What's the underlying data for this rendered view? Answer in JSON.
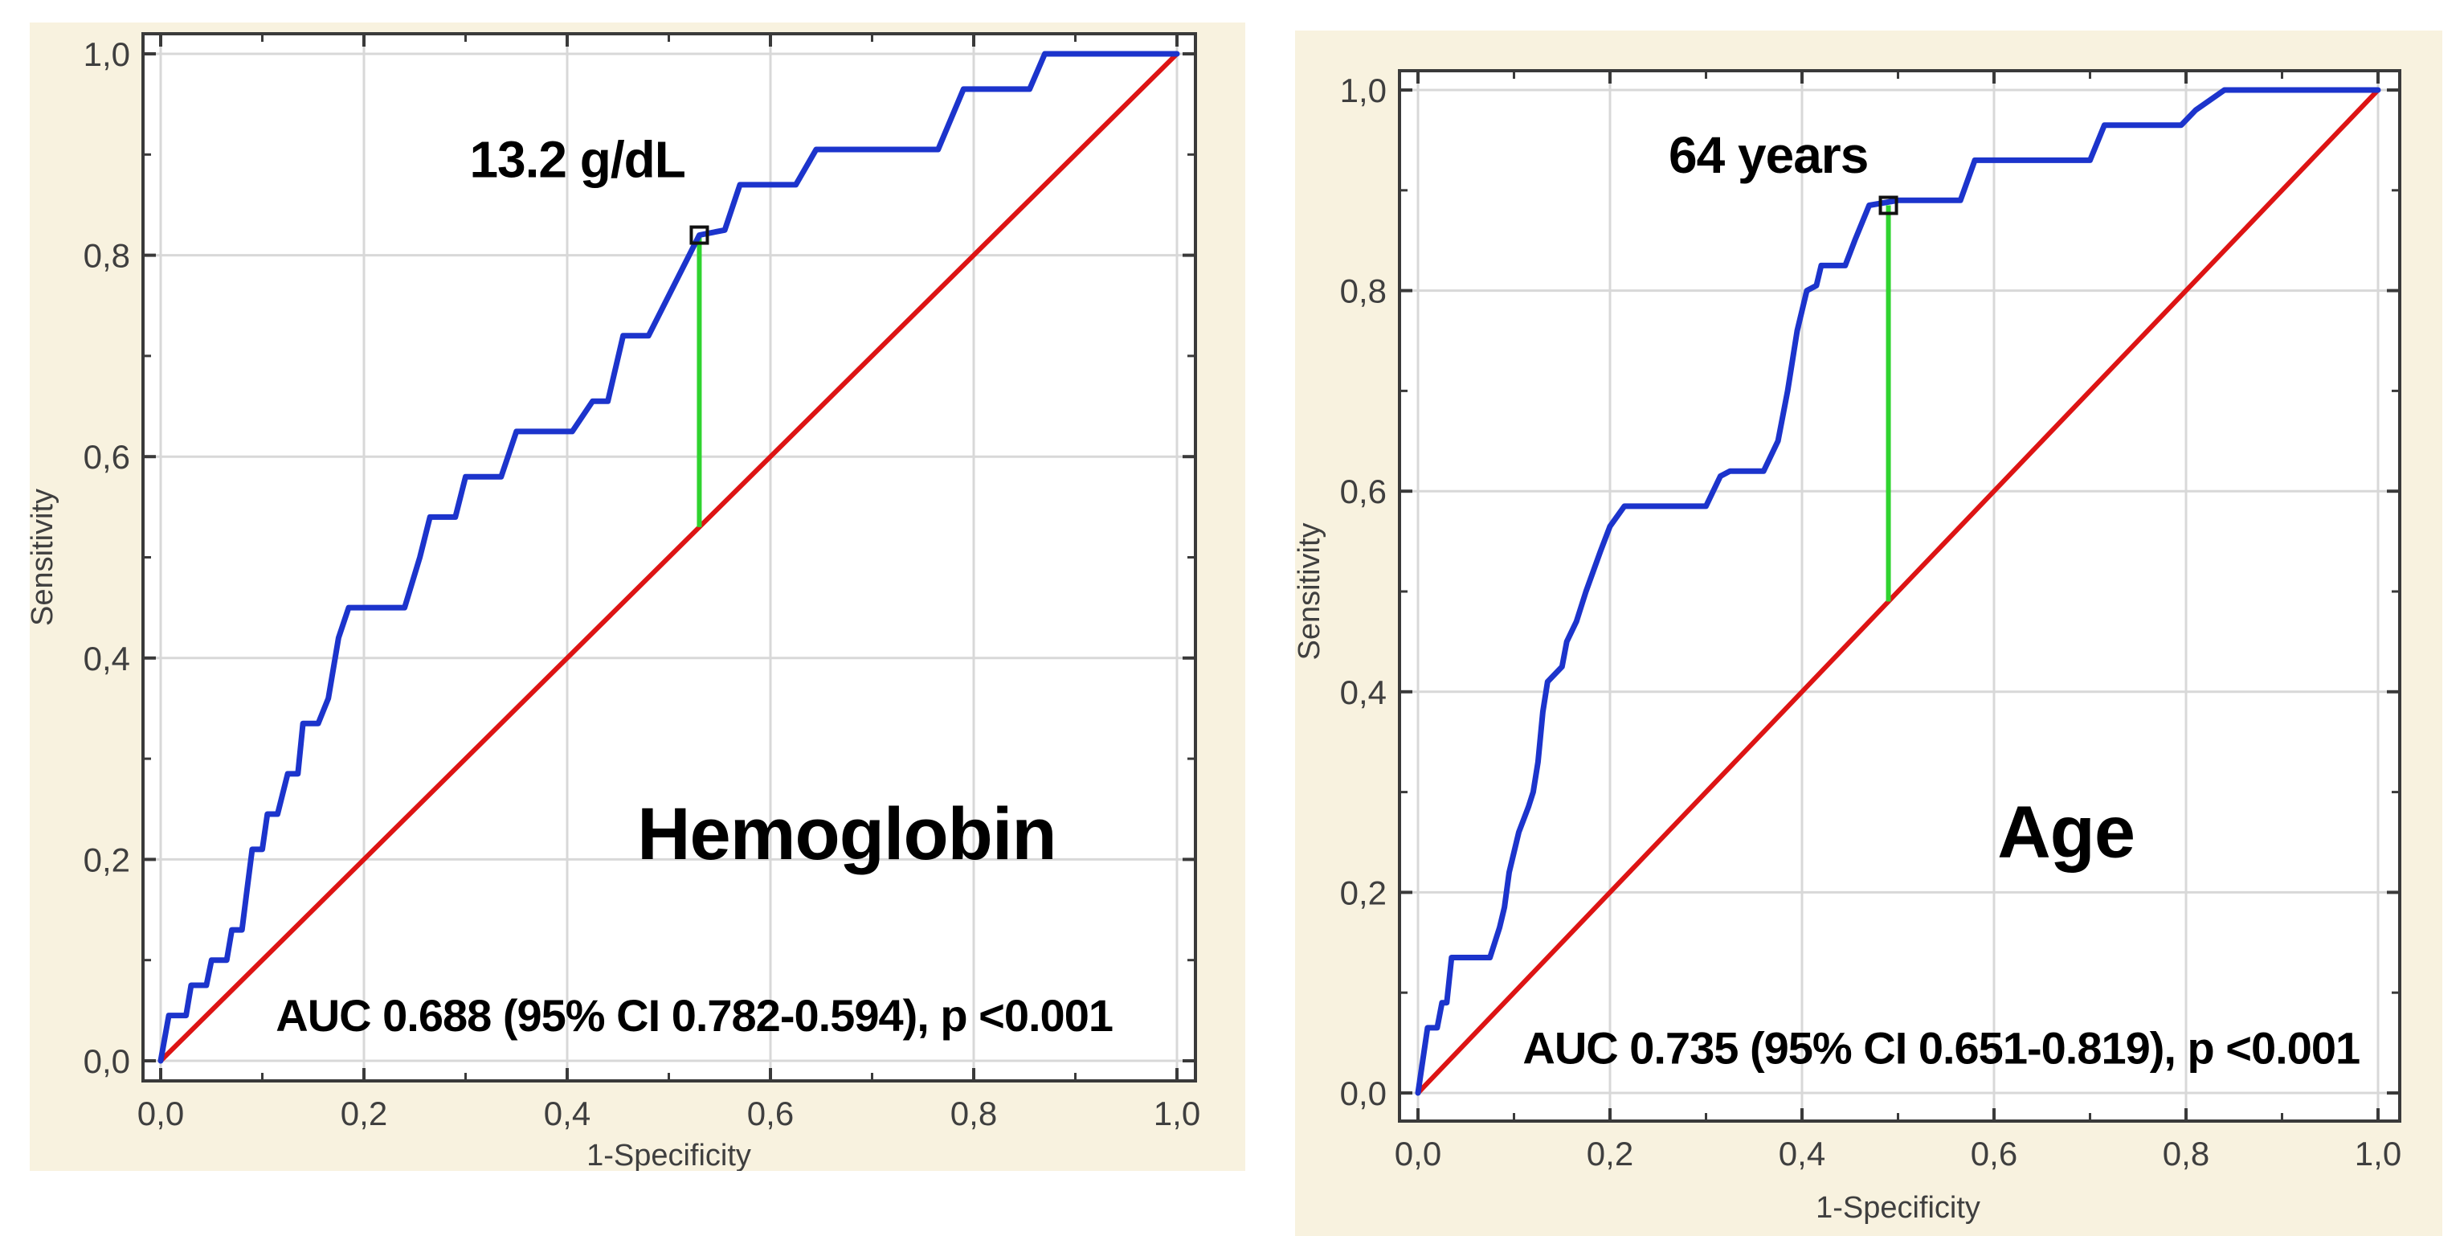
{
  "page": {
    "background": "#ffffff"
  },
  "colors": {
    "panel_bg": "#f8f2df",
    "plot_bg": "#ffffff",
    "grid": "#d8d8d8",
    "frame": "#3a3a3a",
    "tick_text": "#3f3f3f",
    "annotation_text": "#000000",
    "roc_curve": "#1c34cc",
    "chance_diagonal": "#dd1414",
    "cutoff_line": "#2fd32f",
    "cutoff_marker": "#111111"
  },
  "chart_data": [
    {
      "type": "line",
      "title": "Hemoglobin",
      "xlabel": "1-Specificity",
      "ylabel": "Sensitivity",
      "xlim": [
        0,
        1
      ],
      "ylim": [
        0,
        1
      ],
      "grid": true,
      "legend_position": "none",
      "tick_values": [
        0,
        0.2,
        0.4,
        0.6,
        0.8,
        1.0
      ],
      "tick_labels": [
        "0,0",
        "0,2",
        "0,4",
        "0,6",
        "0,8",
        "1,0"
      ],
      "minor_tick_step": 0.1,
      "series": [
        {
          "name": "ROC curve",
          "color_key": "roc_curve",
          "points": [
            [
              0,
              0
            ],
            [
              0.008,
              0.045
            ],
            [
              0.025,
              0.045
            ],
            [
              0.03,
              0.075
            ],
            [
              0.045,
              0.075
            ],
            [
              0.05,
              0.1
            ],
            [
              0.065,
              0.1
            ],
            [
              0.07,
              0.13
            ],
            [
              0.08,
              0.13
            ],
            [
              0.085,
              0.17
            ],
            [
              0.09,
              0.21
            ],
            [
              0.1,
              0.21
            ],
            [
              0.105,
              0.245
            ],
            [
              0.115,
              0.245
            ],
            [
              0.125,
              0.285
            ],
            [
              0.135,
              0.285
            ],
            [
              0.14,
              0.335
            ],
            [
              0.155,
              0.335
            ],
            [
              0.165,
              0.36
            ],
            [
              0.175,
              0.42
            ],
            [
              0.185,
              0.45
            ],
            [
              0.24,
              0.45
            ],
            [
              0.255,
              0.5
            ],
            [
              0.265,
              0.54
            ],
            [
              0.29,
              0.54
            ],
            [
              0.3,
              0.58
            ],
            [
              0.335,
              0.58
            ],
            [
              0.35,
              0.625
            ],
            [
              0.405,
              0.625
            ],
            [
              0.425,
              0.655
            ],
            [
              0.44,
              0.655
            ],
            [
              0.455,
              0.72
            ],
            [
              0.48,
              0.72
            ],
            [
              0.53,
              0.82
            ],
            [
              0.555,
              0.825
            ],
            [
              0.57,
              0.87
            ],
            [
              0.625,
              0.87
            ],
            [
              0.645,
              0.905
            ],
            [
              0.765,
              0.905
            ],
            [
              0.79,
              0.965
            ],
            [
              0.855,
              0.965
            ],
            [
              0.87,
              1.0
            ],
            [
              1.0,
              1.0
            ]
          ]
        },
        {
          "name": "Chance diagonal",
          "color_key": "chance_diagonal",
          "points": [
            [
              0,
              0
            ],
            [
              1,
              1
            ]
          ]
        }
      ],
      "cutoff": {
        "label": "13.2 g/dL",
        "x": 0.53,
        "y_curve": 0.82,
        "y_diagonal": 0.53,
        "label_pos": [
          0.41,
          0.895
        ]
      },
      "annotations": [
        {
          "role": "title",
          "text": "Hemoglobin",
          "pos": [
            0.675,
            0.225
          ]
        },
        {
          "role": "auc",
          "text": "AUC 0.688 (95% CI 0.782-0.594), p <0.001",
          "pos": [
            0.525,
            0.045
          ]
        }
      ]
    },
    {
      "type": "line",
      "title": "Age",
      "xlabel": "1-Specificity",
      "ylabel": "Sensitivity",
      "xlim": [
        0,
        1
      ],
      "ylim": [
        0,
        1
      ],
      "grid": true,
      "legend_position": "none",
      "tick_values": [
        0,
        0.2,
        0.4,
        0.6,
        0.8,
        1.0
      ],
      "tick_labels": [
        "0,0",
        "0,2",
        "0,4",
        "0,6",
        "0,8",
        "1,0"
      ],
      "minor_tick_step": 0.1,
      "series": [
        {
          "name": "ROC curve",
          "color_key": "roc_curve",
          "points": [
            [
              0,
              0
            ],
            [
              0.01,
              0.065
            ],
            [
              0.02,
              0.065
            ],
            [
              0.025,
              0.09
            ],
            [
              0.03,
              0.09
            ],
            [
              0.035,
              0.135
            ],
            [
              0.075,
              0.135
            ],
            [
              0.085,
              0.165
            ],
            [
              0.09,
              0.185
            ],
            [
              0.095,
              0.22
            ],
            [
              0.1,
              0.24
            ],
            [
              0.105,
              0.26
            ],
            [
              0.115,
              0.285
            ],
            [
              0.12,
              0.3
            ],
            [
              0.125,
              0.33
            ],
            [
              0.13,
              0.38
            ],
            [
              0.135,
              0.41
            ],
            [
              0.15,
              0.425
            ],
            [
              0.155,
              0.45
            ],
            [
              0.165,
              0.47
            ],
            [
              0.175,
              0.5
            ],
            [
              0.19,
              0.54
            ],
            [
              0.2,
              0.565
            ],
            [
              0.215,
              0.585
            ],
            [
              0.3,
              0.585
            ],
            [
              0.315,
              0.615
            ],
            [
              0.325,
              0.62
            ],
            [
              0.36,
              0.62
            ],
            [
              0.375,
              0.65
            ],
            [
              0.385,
              0.7
            ],
            [
              0.395,
              0.76
            ],
            [
              0.405,
              0.8
            ],
            [
              0.415,
              0.805
            ],
            [
              0.42,
              0.825
            ],
            [
              0.445,
              0.825
            ],
            [
              0.455,
              0.85
            ],
            [
              0.47,
              0.885
            ],
            [
              0.5,
              0.89
            ],
            [
              0.565,
              0.89
            ],
            [
              0.58,
              0.93
            ],
            [
              0.7,
              0.93
            ],
            [
              0.715,
              0.965
            ],
            [
              0.795,
              0.965
            ],
            [
              0.81,
              0.98
            ],
            [
              0.84,
              1.0
            ],
            [
              1.0,
              1.0
            ]
          ]
        },
        {
          "name": "Chance diagonal",
          "color_key": "chance_diagonal",
          "points": [
            [
              0,
              0
            ],
            [
              1,
              1
            ]
          ]
        }
      ],
      "cutoff": {
        "label": "64 years",
        "x": 0.49,
        "y_curve": 0.885,
        "y_diagonal": 0.49,
        "label_pos": [
          0.365,
          0.935
        ]
      },
      "annotations": [
        {
          "role": "title",
          "text": "Age",
          "pos": [
            0.675,
            0.26
          ]
        },
        {
          "role": "auc",
          "text": "AUC 0.735 (95% CI 0.651-0.819), p <0.001",
          "pos": [
            0.545,
            0.045
          ]
        }
      ]
    }
  ]
}
